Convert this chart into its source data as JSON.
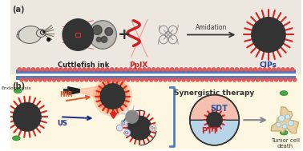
{
  "bg_top": "#ece8e0",
  "bg_bottom": "#fdf6e0",
  "membrane_blue": "#4a7fc1",
  "membrane_pink": "#e05a5a",
  "np_dark": "#383838",
  "spike_red": "#dd3030",
  "ppix_red": "#cc2020",
  "nir_color": "#e05a2a",
  "us_color": "#1a2a8a",
  "sdt_color": "#b8d4e8",
  "ptt_color": "#f5c0b0",
  "sdt_text_color": "#2255aa",
  "ptt_text_color": "#cc2222",
  "text_cuttlefish": "Cuttlefish ink",
  "text_ppix": "PpIX",
  "text_cips": "CIPs",
  "text_amidation": "Amidation",
  "text_endocytosis": "Endocytosis",
  "text_nir": "NIR",
  "text_us": "US",
  "text_sdt": "SDT",
  "text_ptt": "PTT",
  "text_synergistic": "Synergistic therapy",
  "text_tumor": "Tumor cell\ndeath",
  "label_a": "(a)",
  "label_b": "(b)"
}
